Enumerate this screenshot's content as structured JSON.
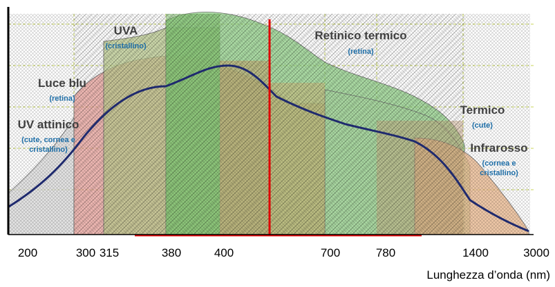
{
  "chart_data": {
    "type": "area",
    "xlabel": "Lunghezza d’onda (nm)",
    "x_tick_labels": [
      "200",
      "300",
      "315",
      "380",
      "400",
      "700",
      "780",
      "1400",
      "3000"
    ],
    "grid": true,
    "bands": [
      {
        "name": "UV attinico",
        "subtitle_lines": [
          "(cute, cornea e",
          "cristallino)"
        ],
        "color": "#d9d9d9"
      },
      {
        "name": "Luce blu",
        "subtitle_lines": [
          "(retina)"
        ],
        "color": "#e8a09a"
      },
      {
        "name": "UVA",
        "subtitle_lines": [
          "(cristallino)"
        ],
        "color": "#b9c98e"
      },
      {
        "name": "Retinico termico",
        "subtitle_lines": [
          "(retina)"
        ],
        "color": "#8fcf86"
      },
      {
        "name": "Termico",
        "subtitle_lines": [
          "(cute)"
        ],
        "color": "#a8d6a0"
      },
      {
        "name": "Infrarosso",
        "subtitle_lines": [
          "(cornea e",
          "cristallino)"
        ],
        "color": "#e8b48a"
      }
    ],
    "reference_line": {
      "x": "555",
      "color": "#e00000"
    },
    "spectrum_curve_color": "#1f2a6e"
  }
}
